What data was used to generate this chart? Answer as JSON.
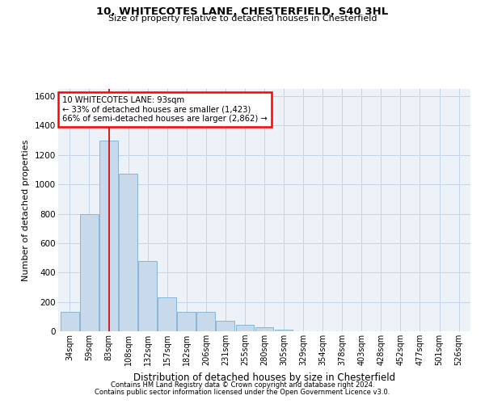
{
  "title1": "10, WHITECOTES LANE, CHESTERFIELD, S40 3HL",
  "title2": "Size of property relative to detached houses in Chesterfield",
  "xlabel": "Distribution of detached houses by size in Chesterfield",
  "ylabel": "Number of detached properties",
  "footnote1": "Contains HM Land Registry data © Crown copyright and database right 2024.",
  "footnote2": "Contains public sector information licensed under the Open Government Licence v3.0.",
  "annotation_line1": "10 WHITECOTES LANE: 93sqm",
  "annotation_line2": "← 33% of detached houses are smaller (1,423)",
  "annotation_line3": "66% of semi-detached houses are larger (2,862) →",
  "bar_color": "#c9d9ec",
  "bar_edge_color": "#7aafd4",
  "red_line_color": "#cc0000",
  "categories": [
    "34sqm",
    "59sqm",
    "83sqm",
    "108sqm",
    "132sqm",
    "157sqm",
    "182sqm",
    "206sqm",
    "231sqm",
    "255sqm",
    "280sqm",
    "305sqm",
    "329sqm",
    "354sqm",
    "378sqm",
    "403sqm",
    "428sqm",
    "452sqm",
    "477sqm",
    "501sqm",
    "526sqm"
  ],
  "values": [
    130,
    800,
    1300,
    1070,
    480,
    230,
    130,
    130,
    70,
    45,
    25,
    10,
    0,
    0,
    0,
    0,
    0,
    0,
    0,
    0,
    0
  ],
  "ylim": [
    0,
    1650
  ],
  "yticks": [
    0,
    200,
    400,
    600,
    800,
    1000,
    1200,
    1400,
    1600
  ],
  "red_line_x": 2,
  "background_color": "#ffffff",
  "plot_bg_color": "#edf2f8",
  "grid_color": "#c5d5e5"
}
